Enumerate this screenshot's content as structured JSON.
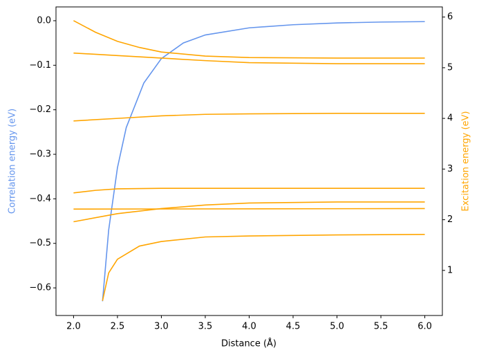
{
  "chart_data": {
    "type": "line",
    "xlabel": "Distance (Å)",
    "ylabel": "Correlation energy (eV)",
    "y2label": "Excitation energy (eV)",
    "xlim": [
      1.8,
      6.2
    ],
    "ylim": [
      -0.662,
      0.031
    ],
    "y2lim": [
      0.11,
      6.2
    ],
    "xticks": [
      {
        "value": 2.0,
        "label": "2.0"
      },
      {
        "value": 2.5,
        "label": "2.5"
      },
      {
        "value": 3.0,
        "label": "3.0"
      },
      {
        "value": 3.5,
        "label": "3.5"
      },
      {
        "value": 4.0,
        "label": "4.0"
      },
      {
        "value": 4.5,
        "label": "4.5"
      },
      {
        "value": 5.0,
        "label": "5.0"
      },
      {
        "value": 5.5,
        "label": "5.5"
      },
      {
        "value": 6.0,
        "label": "6.0"
      }
    ],
    "yticks": [
      {
        "value": 0.0,
        "label": "0.0"
      },
      {
        "value": -0.1,
        "label": "−0.1"
      },
      {
        "value": -0.2,
        "label": "−0.2"
      },
      {
        "value": -0.3,
        "label": "−0.3"
      },
      {
        "value": -0.4,
        "label": "−0.4"
      },
      {
        "value": -0.5,
        "label": "−0.5"
      },
      {
        "value": -0.6,
        "label": "−0.6"
      }
    ],
    "y2ticks": [
      1,
      2,
      3,
      4,
      5,
      6
    ],
    "series": [
      {
        "color": "#6495ed",
        "axis": "y",
        "x": [
          2.33,
          2.4,
          2.5,
          2.6,
          2.8,
          3.0,
          3.25,
          3.5,
          4.0,
          4.5,
          5.0,
          5.5,
          6.0
        ],
        "values": [
          -0.63,
          -0.47,
          -0.33,
          -0.24,
          -0.14,
          -0.085,
          -0.05,
          -0.032,
          -0.016,
          -0.009,
          -0.005,
          -0.003,
          -0.002
        ]
      },
      {
        "color": "#ffa500",
        "axis": "y2",
        "x": [
          2.0,
          2.25,
          2.5,
          2.75,
          3.0,
          3.5,
          4.0,
          5.0,
          6.0
        ],
        "values": [
          5.93,
          5.7,
          5.52,
          5.4,
          5.31,
          5.23,
          5.2,
          5.19,
          5.19
        ]
      },
      {
        "color": "#ffa500",
        "axis": "y2",
        "x": [
          2.0,
          2.5,
          3.0,
          3.5,
          4.0,
          5.0,
          6.0
        ],
        "values": [
          5.29,
          5.24,
          5.19,
          5.14,
          5.1,
          5.08,
          5.08
        ]
      },
      {
        "color": "#ffa500",
        "axis": "y2",
        "x": [
          2.0,
          2.5,
          3.0,
          3.5,
          4.0,
          5.0,
          6.0
        ],
        "values": [
          3.95,
          4.0,
          4.05,
          4.08,
          4.09,
          4.1,
          4.1
        ]
      },
      {
        "color": "#ffa500",
        "axis": "y2",
        "x": [
          2.0,
          2.25,
          2.5,
          3.0,
          6.0
        ],
        "values": [
          2.53,
          2.58,
          2.61,
          2.62,
          2.62
        ]
      },
      {
        "color": "#ffa500",
        "axis": "y2",
        "x": [
          2.0,
          6.0
        ],
        "values": [
          2.21,
          2.22
        ]
      },
      {
        "color": "#ffa500",
        "axis": "y2",
        "x": [
          2.0,
          2.5,
          3.0,
          3.5,
          4.0,
          5.0,
          6.0
        ],
        "values": [
          1.96,
          2.12,
          2.22,
          2.29,
          2.33,
          2.35,
          2.35
        ]
      },
      {
        "color": "#ffa500",
        "axis": "y2",
        "x": [
          2.33,
          2.4,
          2.5,
          2.75,
          3.0,
          3.5,
          4.0,
          5.0,
          6.0
        ],
        "values": [
          0.4,
          0.95,
          1.22,
          1.48,
          1.57,
          1.66,
          1.68,
          1.7,
          1.71
        ]
      }
    ]
  }
}
